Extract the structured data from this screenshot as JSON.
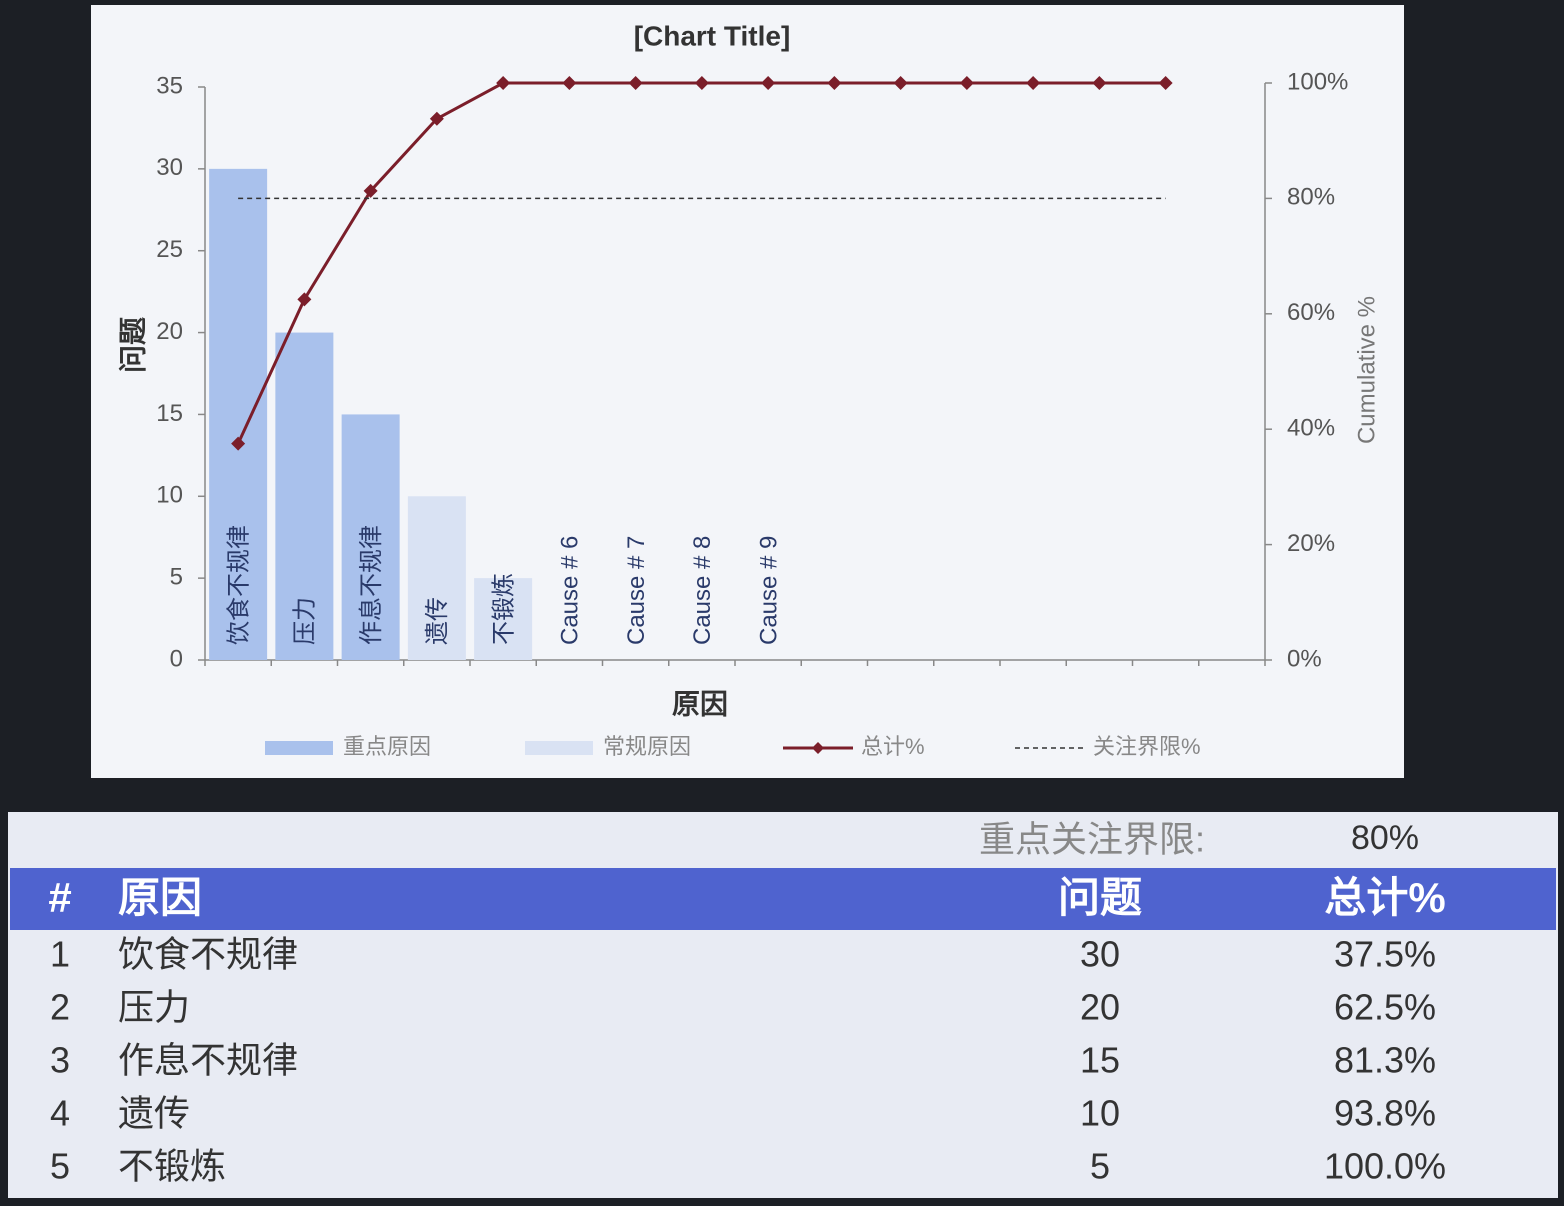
{
  "chart_data": {
    "type": "pareto",
    "title": "[Chart Title]",
    "x_label": "原因",
    "y_label": "问题",
    "y2_label": "Cumulative %",
    "categories": [
      "饮食不规律",
      "压力",
      "作息不规律",
      "遗传",
      "不锻炼",
      "Cause # 6",
      "Cause # 7",
      "Cause # 8",
      "Cause # 9",
      null,
      null,
      null,
      null,
      null,
      null
    ],
    "series": [
      {
        "name": "重点原因",
        "type": "bar",
        "color": "#a9c1ec",
        "values": [
          30,
          20,
          15,
          null,
          null,
          null,
          null,
          null,
          null,
          null,
          null,
          null,
          null,
          null,
          null
        ]
      },
      {
        "name": "常规原因",
        "type": "bar",
        "color": "#d9e2f3",
        "values": [
          null,
          null,
          null,
          10,
          5,
          null,
          null,
          null,
          null,
          null,
          null,
          null,
          null,
          null,
          null
        ]
      },
      {
        "name": "总计%",
        "type": "line",
        "axis": "y2",
        "color": "#7b1e2a",
        "values": [
          37.5,
          62.5,
          81.3,
          93.8,
          100,
          100,
          100,
          100,
          100,
          100,
          100,
          100,
          100,
          100,
          100
        ]
      },
      {
        "name": "关注界限%",
        "type": "line",
        "axis": "y2",
        "color": "#333333",
        "line_style": "dashed",
        "values": [
          80,
          80,
          80,
          80,
          80,
          80,
          80,
          80,
          80,
          80,
          80,
          80,
          80,
          80,
          80
        ]
      }
    ],
    "ylim": [
      0,
      35
    ],
    "yticks": [
      0,
      5,
      10,
      15,
      20,
      25,
      30,
      35
    ],
    "y2lim": [
      0,
      100
    ],
    "y2ticks": [
      {
        "value": 0,
        "label": "0%"
      },
      {
        "value": 20,
        "label": "20%"
      },
      {
        "value": 40,
        "label": "40%"
      },
      {
        "value": 60,
        "label": "60%"
      },
      {
        "value": 80,
        "label": "80%"
      },
      {
        "value": 100,
        "label": "100%"
      }
    ],
    "legend": "bottom"
  },
  "table": {
    "threshold_label": "重点关注界限:",
    "threshold_value": "80%",
    "header": [
      "#",
      "原因",
      "问题",
      "总计%"
    ],
    "rows": [
      [
        "1",
        "饮食不规律",
        "30",
        "37.5%"
      ],
      [
        "2",
        "压力",
        "20",
        "62.5%"
      ],
      [
        "3",
        "作息不规律",
        "15",
        "81.3%"
      ],
      [
        "4",
        "遗传",
        "10",
        "93.8%"
      ],
      [
        "5",
        "不锻炼",
        "5",
        "100.0%"
      ]
    ]
  }
}
